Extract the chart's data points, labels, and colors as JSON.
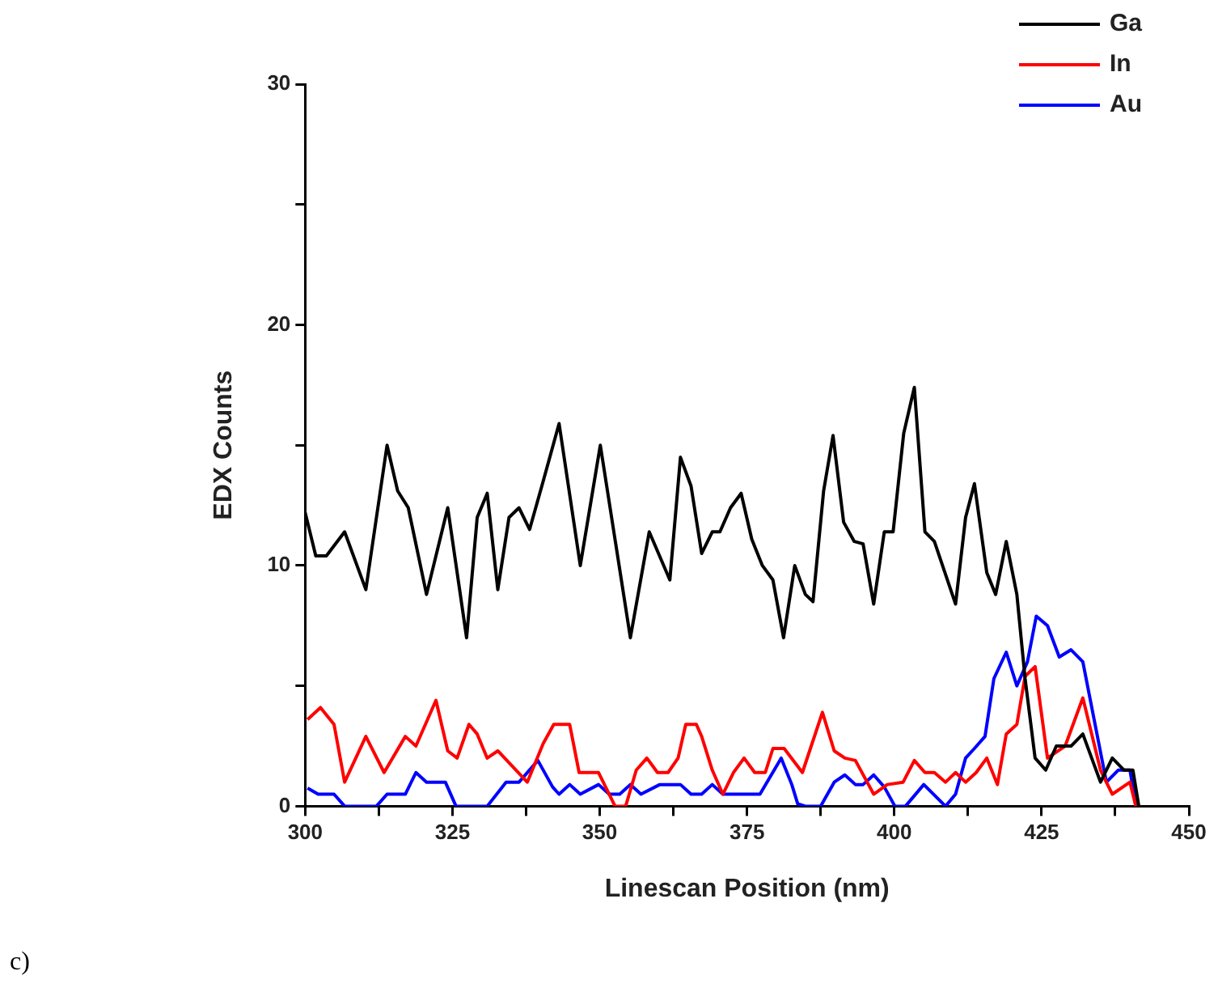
{
  "chart_data": {
    "type": "line",
    "xlabel": "Linescan Position (nm)",
    "ylabel": "EDX Counts",
    "xlim": [
      300,
      450
    ],
    "xticks": [
      300,
      {
        "value": 312.5,
        "label": null
      },
      325,
      {
        "value": 337.5,
        "label": null
      },
      350,
      {
        "value": 362.5,
        "label": null
      },
      375,
      {
        "value": 387.5,
        "label": null
      },
      400,
      {
        "value": 412.5,
        "label": null
      },
      425,
      {
        "value": 437.5,
        "label": null
      },
      450
    ],
    "ylim": [
      0,
      30
    ],
    "yticks": [
      0,
      {
        "value": 5,
        "label": null
      },
      10,
      {
        "value": 15,
        "label": null
      },
      20,
      {
        "value": 25,
        "label": null
      },
      30
    ],
    "grid": false,
    "legend": "top right",
    "marker": "none",
    "line_style": "solid",
    "annotations": [
      "c)"
    ],
    "series": [
      {
        "name": "Ga",
        "color": "#000000",
        "x": [
          300,
          301.8,
          303.6,
          306.7,
          310.3,
          313.9,
          315.7,
          317.5,
          320.6,
          324.2,
          327.4,
          329.2,
          330.9,
          332.7,
          334.6,
          336.3,
          338.1,
          340.4,
          343.1,
          346.7,
          350.1,
          355.2,
          358.4,
          361.9,
          363.7,
          365.5,
          367.3,
          369.1,
          370.4,
          372.2,
          374,
          375.8,
          377.6,
          379.4,
          381.2,
          383.1,
          384.9,
          386.2,
          388,
          389.6,
          391.4,
          393.2,
          394.7,
          396.5,
          398.3,
          399.8,
          401.6,
          403.4,
          405.2,
          406.8,
          410.4,
          412.1,
          413.6,
          415.7,
          417.2,
          419,
          420.8,
          422.2,
          423.9,
          425.7,
          427.5,
          430,
          432,
          435,
          437,
          439,
          440.5,
          441.5
        ],
        "values": [
          12.2,
          10.4,
          10.4,
          11.4,
          9,
          15,
          13.1,
          12.4,
          8.8,
          12.4,
          7,
          12,
          13,
          9,
          12,
          12.4,
          11.5,
          13.5,
          15.9,
          10,
          15,
          7,
          11.4,
          9.4,
          14.5,
          13.3,
          10.5,
          11.4,
          11.4,
          12.4,
          13,
          11.1,
          10,
          9.4,
          7,
          10,
          8.8,
          8.5,
          13.1,
          15.4,
          11.8,
          11,
          10.9,
          8.4,
          11.4,
          11.4,
          15.5,
          17.4,
          11.4,
          11,
          8.4,
          12,
          13.4,
          9.7,
          8.8,
          11,
          8.8,
          5.3,
          2,
          1.5,
          2.5,
          2.5,
          3,
          1,
          2,
          1.5,
          1.5,
          0
        ]
      },
      {
        "name": "In",
        "color": "#ff0000",
        "x": [
          300.4,
          302.6,
          304.9,
          306.7,
          310.3,
          313.4,
          317,
          318.8,
          322.2,
          324.2,
          325.8,
          327.8,
          329.2,
          330.9,
          332.7,
          337.7,
          340.4,
          342.2,
          344.9,
          346.5,
          349.8,
          352.6,
          354.4,
          356.2,
          358,
          359.8,
          361.6,
          363.3,
          364.6,
          366.4,
          367.3,
          369.1,
          370.9,
          372.7,
          374.5,
          376.3,
          378.1,
          379.4,
          381.3,
          384.4,
          387.8,
          389.8,
          391.6,
          393.4,
          396.5,
          398.8,
          401.5,
          403.4,
          405.2,
          406.8,
          408.7,
          410.4,
          412.1,
          413.9,
          415.7,
          417.5,
          419,
          420.8,
          422.2,
          423.9,
          426,
          429,
          432,
          435,
          437,
          440,
          441
        ],
        "values": [
          3.6,
          4.1,
          3.4,
          1,
          2.9,
          1.4,
          2.9,
          2.5,
          4.4,
          2.3,
          2,
          3.4,
          3,
          2,
          2.3,
          1,
          2.6,
          3.4,
          3.4,
          1.4,
          1.4,
          0,
          0,
          1.5,
          2,
          1.4,
          1.4,
          2,
          3.4,
          3.4,
          2.9,
          1.5,
          0.5,
          1.4,
          2,
          1.4,
          1.4,
          2.4,
          2.4,
          1.4,
          3.9,
          2.3,
          2,
          1.9,
          0.5,
          0.9,
          1,
          1.9,
          1.4,
          1.4,
          1,
          1.4,
          1,
          1.4,
          2,
          0.9,
          3,
          3.4,
          5.4,
          5.8,
          2,
          2.5,
          4.5,
          1.5,
          0.5,
          1,
          0
        ]
      },
      {
        "name": "Au",
        "color": "#0000ff",
        "x": [
          300.4,
          302.2,
          304.9,
          306.7,
          312.1,
          313.9,
          317,
          318.8,
          320.6,
          323.8,
          325.6,
          330.9,
          334.1,
          336.3,
          339.5,
          342,
          343.1,
          344.9,
          346.7,
          349.8,
          351.6,
          353.4,
          355.2,
          357,
          360.2,
          363.7,
          365.5,
          367.3,
          369.1,
          370.9,
          377.2,
          380.8,
          382.6,
          383.6,
          384.9,
          387.5,
          389.8,
          391.6,
          393.4,
          394.7,
          396.5,
          398.3,
          400.1,
          401.9,
          405,
          408.7,
          410.4,
          412.1,
          413.6,
          415.4,
          416.9,
          419,
          420.8,
          422.6,
          424.1,
          426,
          428,
          430,
          432,
          434,
          436,
          438,
          440,
          441
        ],
        "values": [
          0.75,
          0.5,
          0.5,
          0,
          0,
          0.5,
          0.5,
          1.4,
          1,
          1,
          0,
          0,
          1,
          1,
          1.9,
          0.8,
          0.5,
          0.9,
          0.5,
          0.9,
          0.5,
          0.5,
          0.9,
          0.5,
          0.9,
          0.9,
          0.5,
          0.5,
          0.9,
          0.5,
          0.5,
          2,
          0.9,
          0.1,
          0,
          0,
          1,
          1.3,
          0.9,
          0.9,
          1.3,
          0.8,
          0,
          0,
          0.9,
          0,
          0.5,
          2,
          2.4,
          2.9,
          5.3,
          6.4,
          5,
          6,
          7.9,
          7.5,
          6.2,
          6.5,
          6,
          3.5,
          1,
          1.5,
          1.5,
          0
        ]
      }
    ]
  }
}
